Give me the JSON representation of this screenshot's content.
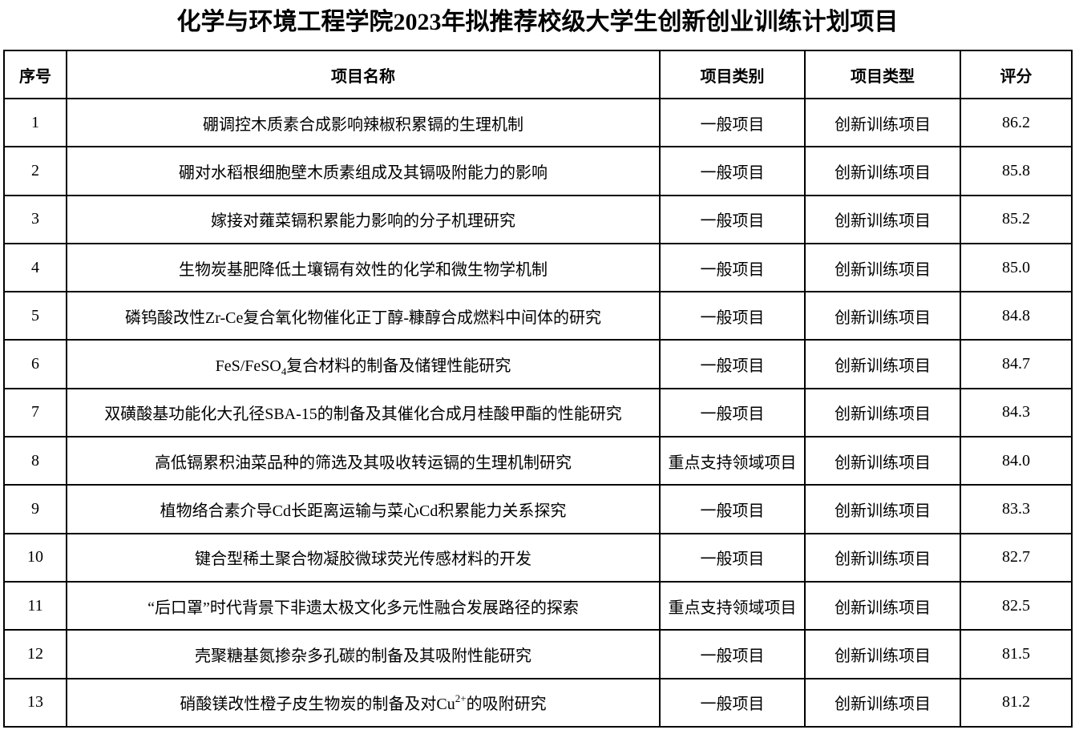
{
  "title": "化学与环境工程学院2023年拟推荐校级大学生创新创业训练计划项目",
  "headers": [
    "序号",
    "项目名称",
    "项目类别",
    "项目类型",
    "评分"
  ],
  "rows": [
    {
      "no": "1",
      "name": [
        {
          "t": "硼调控木质素合成影响辣椒积累镉的生理机制"
        }
      ],
      "category": "一般项目",
      "type": "创新训练项目",
      "score": "86.2"
    },
    {
      "no": "2",
      "name": [
        {
          "t": "硼对水稻根细胞壁木质素组成及其镉吸附能力的影响"
        }
      ],
      "category": "一般项目",
      "type": "创新训练项目",
      "score": "85.8"
    },
    {
      "no": "3",
      "name": [
        {
          "t": "嫁接对蕹菜镉积累能力影响的分子机理研究"
        }
      ],
      "category": "一般项目",
      "type": "创新训练项目",
      "score": "85.2"
    },
    {
      "no": "4",
      "name": [
        {
          "t": "生物炭基肥降低土壤镉有效性的化学和微生物学机制"
        }
      ],
      "category": "一般项目",
      "type": "创新训练项目",
      "score": "85.0"
    },
    {
      "no": "5",
      "name": [
        {
          "t": "磷钨酸改性Zr-Ce复合氧化物催化正丁醇-糠醇合成燃料中间体的研究"
        }
      ],
      "category": "一般项目",
      "type": "创新训练项目",
      "score": "84.8"
    },
    {
      "no": "6",
      "name": [
        {
          "t": "FeS/FeSO"
        },
        {
          "sub": "4"
        },
        {
          "t": "复合材料的制备及储锂性能研究"
        }
      ],
      "category": "一般项目",
      "type": "创新训练项目",
      "score": "84.7"
    },
    {
      "no": "7",
      "name": [
        {
          "t": "双磺酸基功能化大孔径SBA-15的制备及其催化合成月桂酸甲酯的性能研究"
        }
      ],
      "category": "一般项目",
      "type": "创新训练项目",
      "score": "84.3"
    },
    {
      "no": "8",
      "name": [
        {
          "t": "高低镉累积油菜品种的筛选及其吸收转运镉的生理机制研究"
        }
      ],
      "category": "重点支持领域项目",
      "type": "创新训练项目",
      "score": "84.0"
    },
    {
      "no": "9",
      "name": [
        {
          "t": "植物络合素介导Cd长距离运输与菜心Cd积累能力关系探究"
        }
      ],
      "category": "一般项目",
      "type": "创新训练项目",
      "score": "83.3"
    },
    {
      "no": "10",
      "name": [
        {
          "t": "键合型稀土聚合物凝胶微球荧光传感材料的开发"
        }
      ],
      "category": "一般项目",
      "type": "创新训练项目",
      "score": "82.7"
    },
    {
      "no": "11",
      "name": [
        {
          "t": "“后口罩”时代背景下非遗太极文化多元性融合发展路径的探索"
        }
      ],
      "category": "重点支持领域项目",
      "type": "创新训练项目",
      "score": "82.5"
    },
    {
      "no": "12",
      "name": [
        {
          "t": "壳聚糖基氮掺杂多孔碳的制备及其吸附性能研究"
        }
      ],
      "category": "一般项目",
      "type": "创新训练项目",
      "score": "81.5"
    },
    {
      "no": "13",
      "name": [
        {
          "t": "硝酸镁改性橙子皮生物炭的制备及对Cu"
        },
        {
          "sup": "2+"
        },
        {
          "t": "的吸附研究"
        }
      ],
      "category": "一般项目",
      "type": "创新训练项目",
      "score": "81.2"
    }
  ]
}
